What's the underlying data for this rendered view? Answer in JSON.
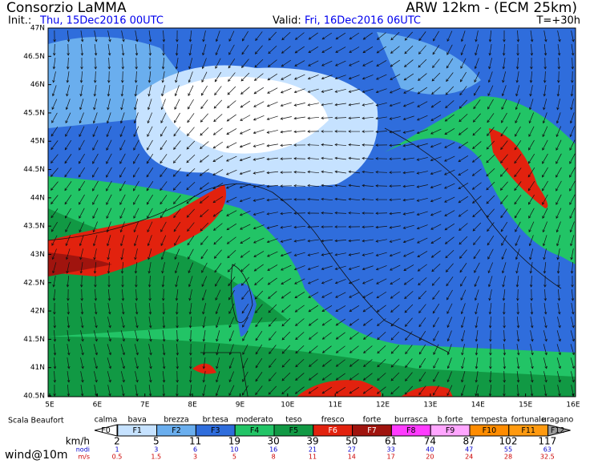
{
  "header": {
    "title": "Consorzio LaMMA",
    "model": "ARW 12km - (ECM 25km)",
    "init_label": "Init.:",
    "init": "Thu, 15Dec2016 00UTC",
    "valid_label": "Valid:",
    "valid": "Fri, 16Dec2016 06UTC",
    "lead": "T=+30h"
  },
  "map": {
    "lat_labels": [
      "47N",
      "46.5N",
      "46N",
      "45.5N",
      "45N",
      "44.5N",
      "44N",
      "43.5N",
      "43N",
      "42.5N",
      "42N",
      "41.5N",
      "41N",
      "40.5N"
    ],
    "lon_labels": [
      "5E",
      "6E",
      "7E",
      "8E",
      "9E",
      "10E",
      "11E",
      "12E",
      "13E",
      "14E",
      "15E",
      "16E"
    ]
  },
  "legend": {
    "title": "Scala Beaufort",
    "field": "wind@10m",
    "classes": [
      {
        "name": "calma",
        "code": "F0",
        "color": "#ffffff"
      },
      {
        "name": "bava",
        "code": "F1",
        "color": "#c6e2ff"
      },
      {
        "name": "brezza",
        "code": "F2",
        "color": "#6aaeee"
      },
      {
        "name": "br.tesa",
        "code": "F3",
        "color": "#2f6ddc"
      },
      {
        "name": "moderato",
        "code": "F4",
        "color": "#22c466"
      },
      {
        "name": "teso",
        "code": "F5",
        "color": "#119944"
      },
      {
        "name": "fresco",
        "code": "F6",
        "color": "#e2220e"
      },
      {
        "name": "forte",
        "code": "F7",
        "color": "#a0140e"
      },
      {
        "name": "burrasca",
        "code": "F8",
        "color": "#ff3cff"
      },
      {
        "name": "b.forte",
        "code": "F9",
        "color": "#ffa6ff"
      },
      {
        "name": "tempesta",
        "code": "F10",
        "color": "#ff8c00"
      },
      {
        "name": "fortunale",
        "code": "F11",
        "color": "#ff9a10"
      },
      {
        "name": "uragano",
        "code": "F12",
        "color": "#9a9a9a"
      }
    ],
    "units": [
      {
        "label": "km/h",
        "color": "#000000",
        "values": [
          "2",
          "5",
          "11",
          "19",
          "30",
          "39",
          "50",
          "61",
          "74",
          "87",
          "102",
          "117"
        ]
      },
      {
        "label": "nodi",
        "color": "#0000cc",
        "values": [
          "1",
          "3",
          "6",
          "10",
          "16",
          "21",
          "27",
          "33",
          "40",
          "47",
          "55",
          "63"
        ]
      },
      {
        "label": "m/s",
        "color": "#cc0000",
        "values": [
          "0.5",
          "1.5",
          "3",
          "5",
          "8",
          "11",
          "14",
          "17",
          "20",
          "24",
          "28",
          "32.5"
        ]
      }
    ]
  }
}
